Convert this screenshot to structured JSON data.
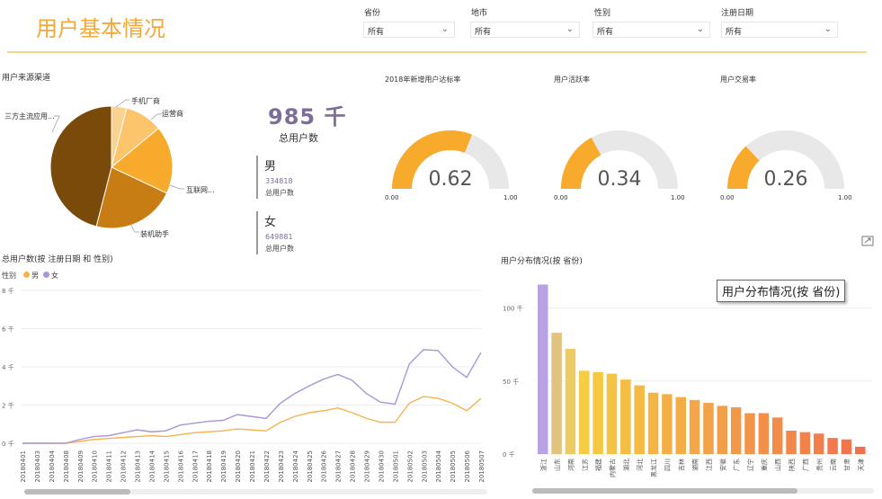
{
  "header": {
    "title": "用户基本情况"
  },
  "filters": [
    {
      "label": "省份",
      "value": "所有"
    },
    {
      "label": "地市",
      "value": "所有"
    },
    {
      "label": "性别",
      "value": "所有"
    },
    {
      "label": "注册日期",
      "value": "所有"
    }
  ],
  "pie": {
    "title": "用户来源渠道",
    "labels": [
      "手机厂商",
      "运营商",
      "互联网...",
      "装机助手",
      "三方主流应用..."
    ]
  },
  "kpi": {
    "total_value": "985 千",
    "total_label": "总用户数",
    "male_title": "男",
    "male_value": "334818",
    "male_label": "总用户数",
    "female_title": "女",
    "female_value": "649881",
    "female_label": "总用户数"
  },
  "gauges": [
    {
      "title": "2018年新增用户达标率",
      "value": "0.62",
      "fraction": 0.62,
      "min": "0.00",
      "max": "1.00"
    },
    {
      "title": "用户活跃率",
      "value": "0.34",
      "fraction": 0.34,
      "min": "0.00",
      "max": "1.00"
    },
    {
      "title": "用户交易率",
      "value": "0.26",
      "fraction": 0.26,
      "min": "0.00",
      "max": "1.00"
    }
  ],
  "line_chart": {
    "title": "总用户数(按 注册日期 和 性别)",
    "legend_title": "性别",
    "legend": [
      "男",
      "女"
    ]
  },
  "bar_chart": {
    "title": "用户分布情况(按 省份)"
  },
  "tooltip": {
    "text": "用户分布情况(按 省份)"
  },
  "colors": {
    "accent": "#f4a83a",
    "male": "#f5b44f",
    "female": "#a996d6",
    "gauge_fill": "#f8aa2c",
    "gauge_bg": "#e8e8e8"
  },
  "chart_data": [
    {
      "type": "pie",
      "title": "用户来源渠道",
      "categories": [
        "手机厂商",
        "运营商",
        "互联网...",
        "装机助手",
        "三方主流应用..."
      ],
      "values": [
        4,
        10,
        18,
        22,
        46
      ]
    },
    {
      "type": "line",
      "title": "总用户数(按 注册日期 和 性别)",
      "legend": [
        "男",
        "女"
      ],
      "ylabel": "",
      "y_ticks": [
        "0 千",
        "2 千",
        "4 千",
        "6 千",
        "8 千"
      ],
      "ylim": [
        0,
        8
      ],
      "x": [
        "20180401",
        "20180403",
        "20180404",
        "20180408",
        "20180409",
        "20180410",
        "20180411",
        "20180412",
        "20180413",
        "20180414",
        "20180415",
        "20180416",
        "20180417",
        "20180418",
        "20180419",
        "20180420",
        "20180421",
        "20180422",
        "20180423",
        "20180424",
        "20180425",
        "20180426",
        "20180427",
        "20180428",
        "20180429",
        "20180430",
        "20180501",
        "20180502",
        "20180503",
        "20180504",
        "20180505",
        "20180506",
        "20180507"
      ],
      "series": [
        {
          "name": "男",
          "values": [
            0,
            0,
            0,
            0,
            0.1,
            0.2,
            0.25,
            0.3,
            0.35,
            0.4,
            0.35,
            0.45,
            0.55,
            0.6,
            0.65,
            0.75,
            0.7,
            0.65,
            1.1,
            1.4,
            1.6,
            1.7,
            1.85,
            1.6,
            1.3,
            1.1,
            1.1,
            2.1,
            2.45,
            2.35,
            2.1,
            1.7,
            2.35
          ]
        },
        {
          "name": "女",
          "values": [
            0,
            0,
            0,
            0,
            0.2,
            0.35,
            0.4,
            0.55,
            0.7,
            0.6,
            0.65,
            0.95,
            1.05,
            1.15,
            1.2,
            1.5,
            1.4,
            1.3,
            2.1,
            2.6,
            3.0,
            3.35,
            3.6,
            3.3,
            2.6,
            2.15,
            2.05,
            4.15,
            4.9,
            4.85,
            4.0,
            3.45,
            4.75
          ]
        }
      ]
    },
    {
      "type": "bar",
      "title": "用户分布情况(按 省份)",
      "y_ticks": [
        "0 千",
        "50 千",
        "100 千"
      ],
      "ylim": [
        0,
        120
      ],
      "categories": [
        "浙江",
        "山东",
        "河南",
        "江苏",
        "福建",
        "内蒙古",
        "湖北",
        "河北",
        "黑龙江",
        "四川",
        "吉林",
        "湖南",
        "江西",
        "安徽",
        "广东",
        "辽宁",
        "重庆",
        "山西",
        "陕西",
        "广西",
        "贵州",
        "云南",
        "甘肃",
        "天津"
      ],
      "values": [
        116,
        83,
        72,
        57,
        56,
        55,
        51,
        47,
        42,
        41,
        39,
        37,
        35,
        33,
        32,
        28,
        28,
        25,
        16,
        15,
        14,
        11,
        10,
        5
      ]
    }
  ]
}
